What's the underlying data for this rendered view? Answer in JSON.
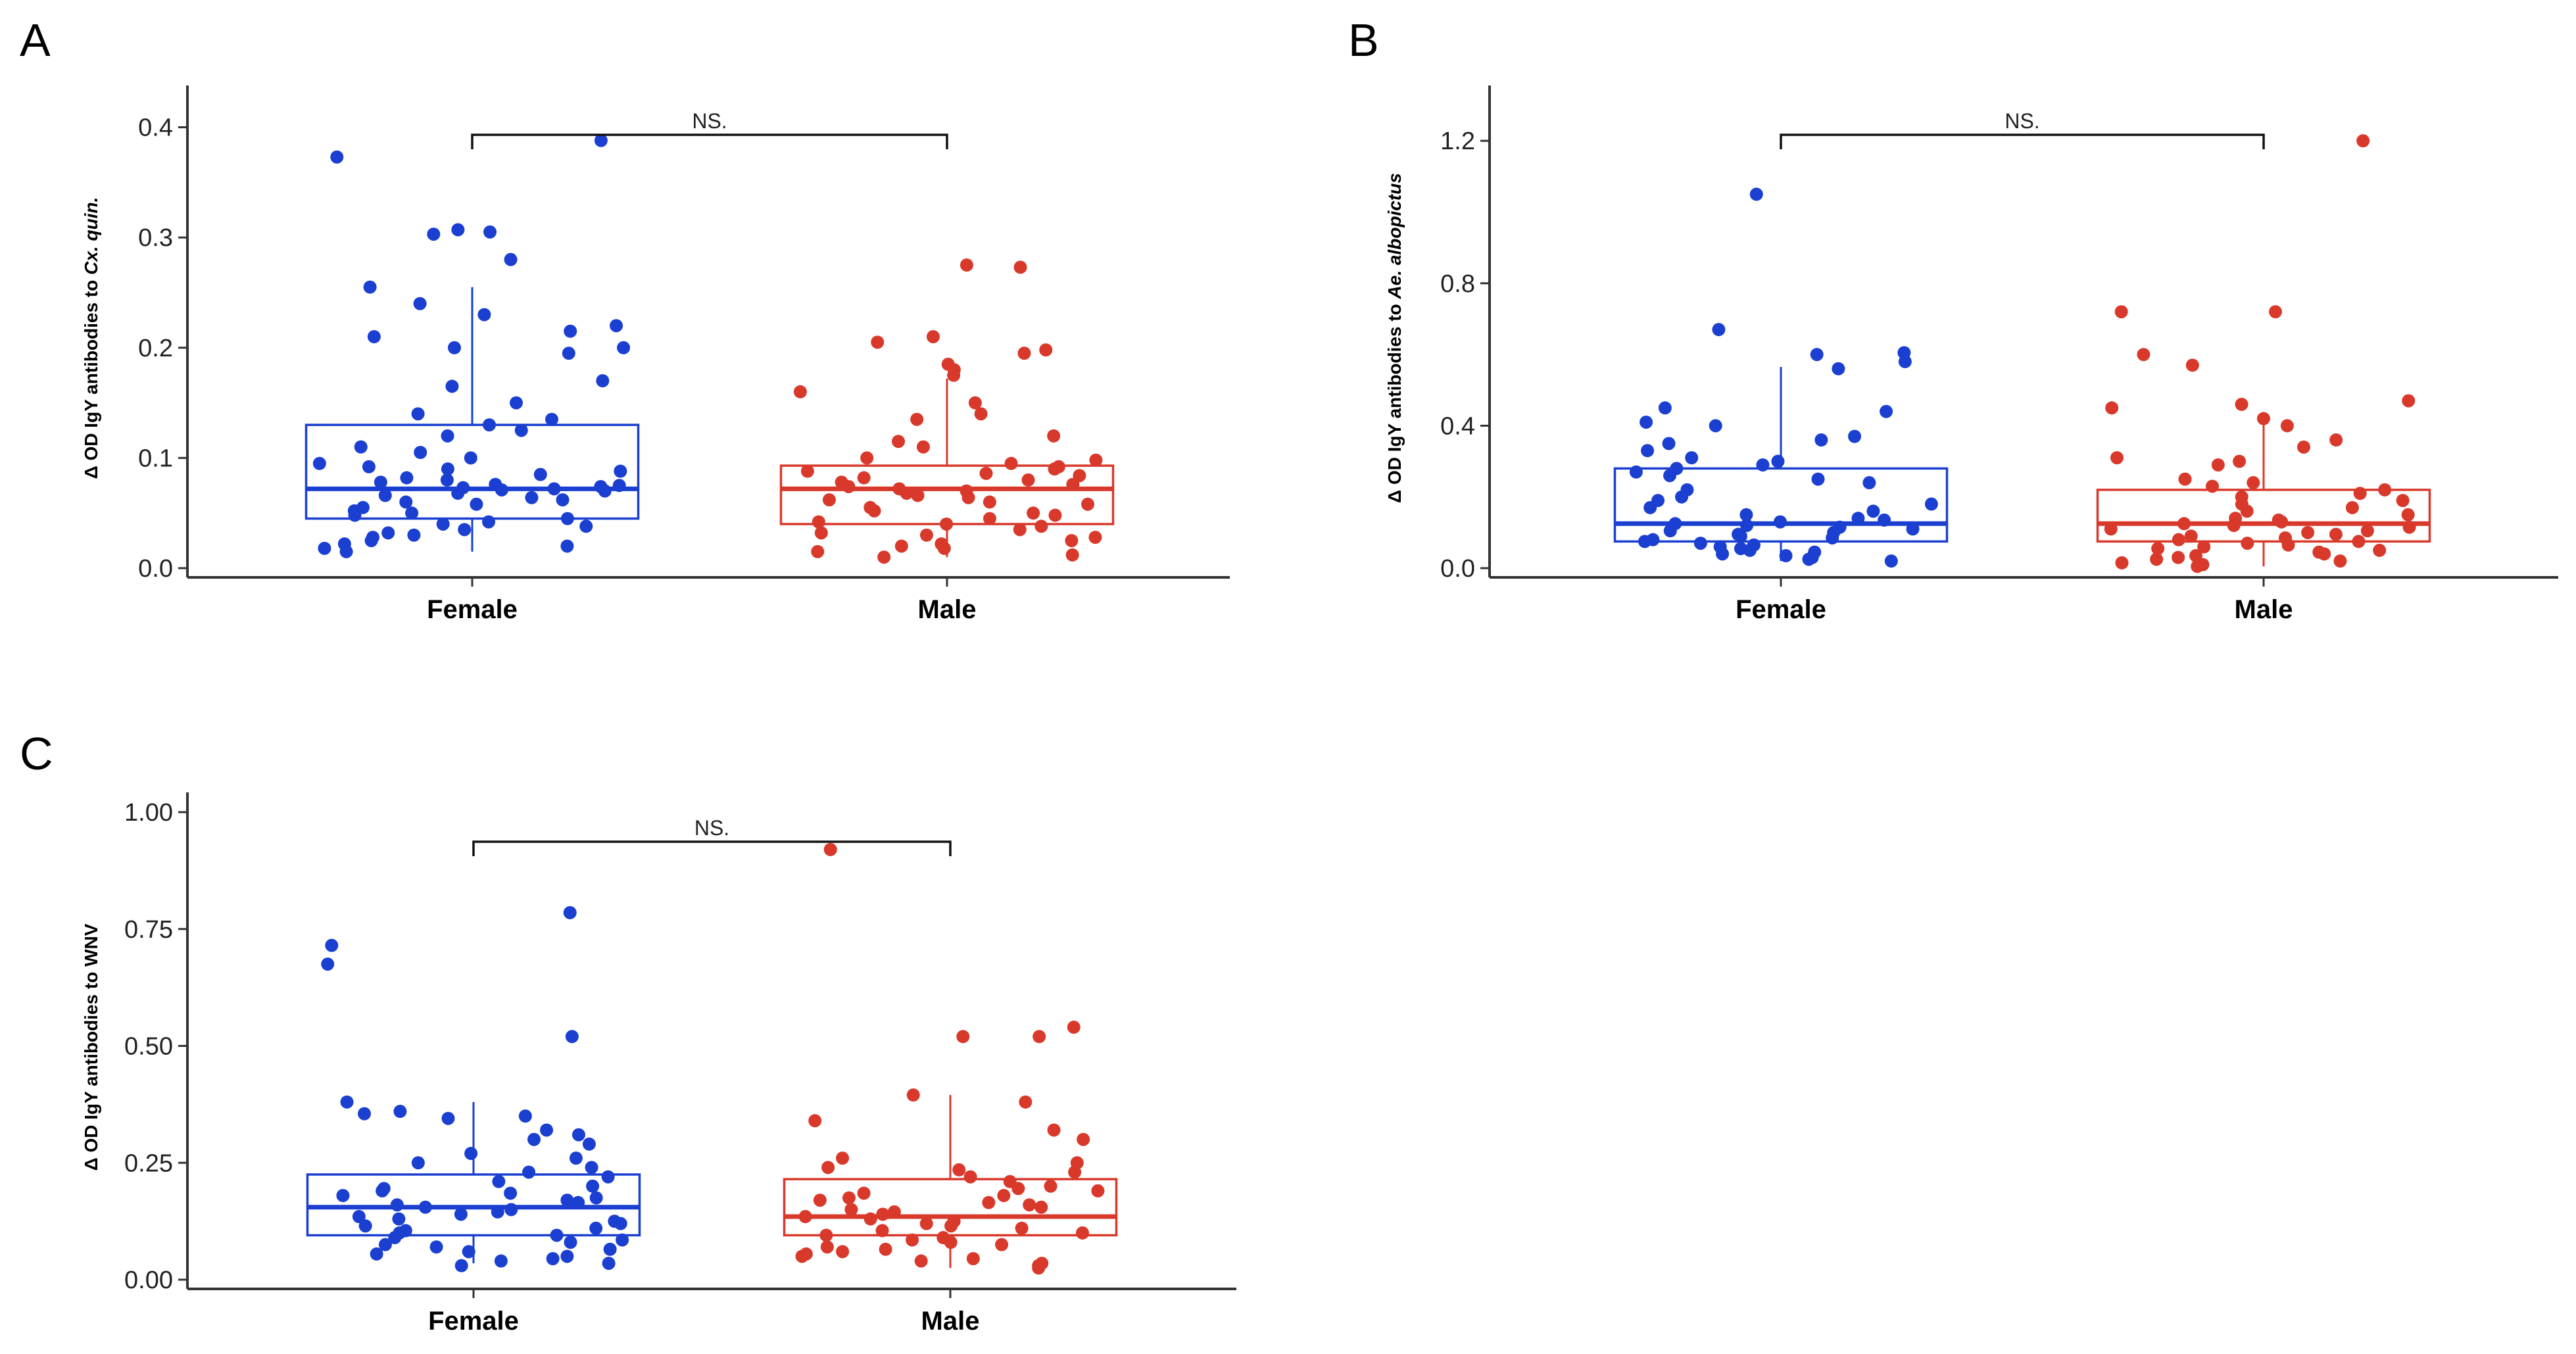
{
  "chart_data": [
    {
      "panel": "A",
      "type": "box",
      "categories": [
        "Female",
        "Male"
      ],
      "ylabel": {
        "prefix": "Δ OD IgY antibodies to ",
        "italic": "Cx. quin."
      },
      "ylim": [
        0,
        0.42
      ],
      "yticks": [
        0.0,
        0.1,
        0.2,
        0.3,
        0.4
      ],
      "tick_decimals": 1,
      "significance": "NS.",
      "series": [
        {
          "name": "Female",
          "color": "#1a3fd1",
          "box": {
            "q1": 0.045,
            "median": 0.072,
            "q3": 0.13,
            "whisker_low": 0.015,
            "whisker_high": 0.255
          },
          "points": [
            0.388,
            0.373,
            0.305,
            0.303,
            0.307,
            0.28,
            0.255,
            0.24,
            0.23,
            0.22,
            0.215,
            0.21,
            0.2,
            0.195,
            0.2,
            0.17,
            0.165,
            0.15,
            0.14,
            0.135,
            0.13,
            0.125,
            0.12,
            0.11,
            0.105,
            0.1,
            0.095,
            0.092,
            0.09,
            0.088,
            0.085,
            0.082,
            0.08,
            0.078,
            0.076,
            0.075,
            0.074,
            0.073,
            0.072,
            0.071,
            0.07,
            0.068,
            0.066,
            0.064,
            0.062,
            0.06,
            0.058,
            0.055,
            0.052,
            0.05,
            0.048,
            0.045,
            0.042,
            0.04,
            0.038,
            0.035,
            0.032,
            0.03,
            0.028,
            0.025,
            0.022,
            0.02,
            0.018,
            0.015
          ]
        },
        {
          "name": "Male",
          "color": "#d9392b",
          "box": {
            "q1": 0.04,
            "median": 0.072,
            "q3": 0.093,
            "whisker_low": 0.01,
            "whisker_high": 0.172
          },
          "points": [
            0.273,
            0.275,
            0.21,
            0.205,
            0.198,
            0.195,
            0.185,
            0.18,
            0.175,
            0.16,
            0.15,
            0.14,
            0.135,
            0.12,
            0.115,
            0.11,
            0.1,
            0.098,
            0.095,
            0.092,
            0.09,
            0.088,
            0.086,
            0.084,
            0.082,
            0.08,
            0.078,
            0.076,
            0.074,
            0.072,
            0.07,
            0.068,
            0.066,
            0.064,
            0.062,
            0.06,
            0.058,
            0.055,
            0.052,
            0.05,
            0.048,
            0.045,
            0.042,
            0.04,
            0.038,
            0.035,
            0.032,
            0.03,
            0.028,
            0.025,
            0.022,
            0.02,
            0.018,
            0.015,
            0.012,
            0.01
          ]
        }
      ]
    },
    {
      "panel": "B",
      "type": "box",
      "categories": [
        "Female",
        "Male"
      ],
      "ylabel": {
        "prefix": "Δ OD IgY antibodies to ",
        "italic": "Ae. albopictus"
      },
      "ylim": [
        0,
        1.3
      ],
      "yticks": [
        0.0,
        0.4,
        0.8,
        1.2
      ],
      "tick_decimals": 1,
      "significance": "NS.",
      "series": [
        {
          "name": "Female",
          "color": "#1a3fd1",
          "box": {
            "q1": 0.075,
            "median": 0.125,
            "q3": 0.28,
            "whisker_low": 0.02,
            "whisker_high": 0.565
          },
          "points": [
            1.05,
            0.67,
            0.605,
            0.6,
            0.58,
            0.56,
            0.45,
            0.44,
            0.41,
            0.4,
            0.37,
            0.36,
            0.35,
            0.33,
            0.31,
            0.3,
            0.29,
            0.28,
            0.27,
            0.26,
            0.25,
            0.24,
            0.22,
            0.2,
            0.19,
            0.18,
            0.17,
            0.16,
            0.15,
            0.14,
            0.135,
            0.13,
            0.125,
            0.12,
            0.115,
            0.11,
            0.105,
            0.1,
            0.095,
            0.09,
            0.085,
            0.08,
            0.075,
            0.07,
            0.065,
            0.06,
            0.055,
            0.05,
            0.045,
            0.04,
            0.035,
            0.03,
            0.025,
            0.02
          ]
        },
        {
          "name": "Male",
          "color": "#d9392b",
          "box": {
            "q1": 0.075,
            "median": 0.125,
            "q3": 0.22,
            "whisker_low": 0.005,
            "whisker_high": 0.42
          },
          "points": [
            1.2,
            0.72,
            0.72,
            0.6,
            0.57,
            0.47,
            0.46,
            0.45,
            0.42,
            0.4,
            0.36,
            0.34,
            0.31,
            0.3,
            0.29,
            0.25,
            0.24,
            0.23,
            0.22,
            0.21,
            0.2,
            0.19,
            0.18,
            0.17,
            0.16,
            0.15,
            0.14,
            0.135,
            0.13,
            0.125,
            0.12,
            0.115,
            0.11,
            0.105,
            0.1,
            0.095,
            0.09,
            0.085,
            0.08,
            0.075,
            0.07,
            0.065,
            0.06,
            0.055,
            0.05,
            0.045,
            0.04,
            0.035,
            0.03,
            0.025,
            0.02,
            0.015,
            0.01,
            0.005
          ]
        }
      ]
    },
    {
      "panel": "C",
      "type": "box",
      "categories": [
        "Female",
        "Male"
      ],
      "ylabel": {
        "prefix": "Δ OD IgY antibodies to WNV",
        "italic": ""
      },
      "ylim": [
        0,
        1.0
      ],
      "yticks": [
        0.0,
        0.25,
        0.5,
        0.75,
        1.0
      ],
      "tick_decimals": 2,
      "significance": "NS.",
      "series": [
        {
          "name": "Female",
          "color": "#1a3fd1",
          "box": {
            "q1": 0.095,
            "median": 0.155,
            "q3": 0.225,
            "whisker_low": 0.035,
            "whisker_high": 0.38
          },
          "points": [
            0.785,
            0.715,
            0.675,
            0.52,
            0.38,
            0.36,
            0.355,
            0.35,
            0.345,
            0.32,
            0.31,
            0.3,
            0.29,
            0.27,
            0.26,
            0.25,
            0.24,
            0.23,
            0.22,
            0.21,
            0.2,
            0.195,
            0.19,
            0.185,
            0.18,
            0.175,
            0.17,
            0.165,
            0.16,
            0.155,
            0.15,
            0.145,
            0.14,
            0.135,
            0.13,
            0.125,
            0.12,
            0.115,
            0.11,
            0.105,
            0.1,
            0.095,
            0.09,
            0.085,
            0.08,
            0.075,
            0.07,
            0.065,
            0.06,
            0.055,
            0.05,
            0.045,
            0.04,
            0.035,
            0.03
          ]
        },
        {
          "name": "Male",
          "color": "#d9392b",
          "box": {
            "q1": 0.095,
            "median": 0.135,
            "q3": 0.215,
            "whisker_low": 0.025,
            "whisker_high": 0.395
          },
          "points": [
            0.92,
            0.54,
            0.52,
            0.52,
            0.395,
            0.38,
            0.34,
            0.32,
            0.3,
            0.26,
            0.25,
            0.24,
            0.235,
            0.23,
            0.22,
            0.21,
            0.2,
            0.195,
            0.19,
            0.185,
            0.18,
            0.175,
            0.17,
            0.165,
            0.16,
            0.155,
            0.15,
            0.145,
            0.14,
            0.135,
            0.13,
            0.125,
            0.12,
            0.115,
            0.11,
            0.105,
            0.1,
            0.095,
            0.09,
            0.085,
            0.08,
            0.075,
            0.07,
            0.065,
            0.06,
            0.055,
            0.05,
            0.045,
            0.04,
            0.035,
            0.03,
            0.025
          ]
        }
      ]
    }
  ]
}
